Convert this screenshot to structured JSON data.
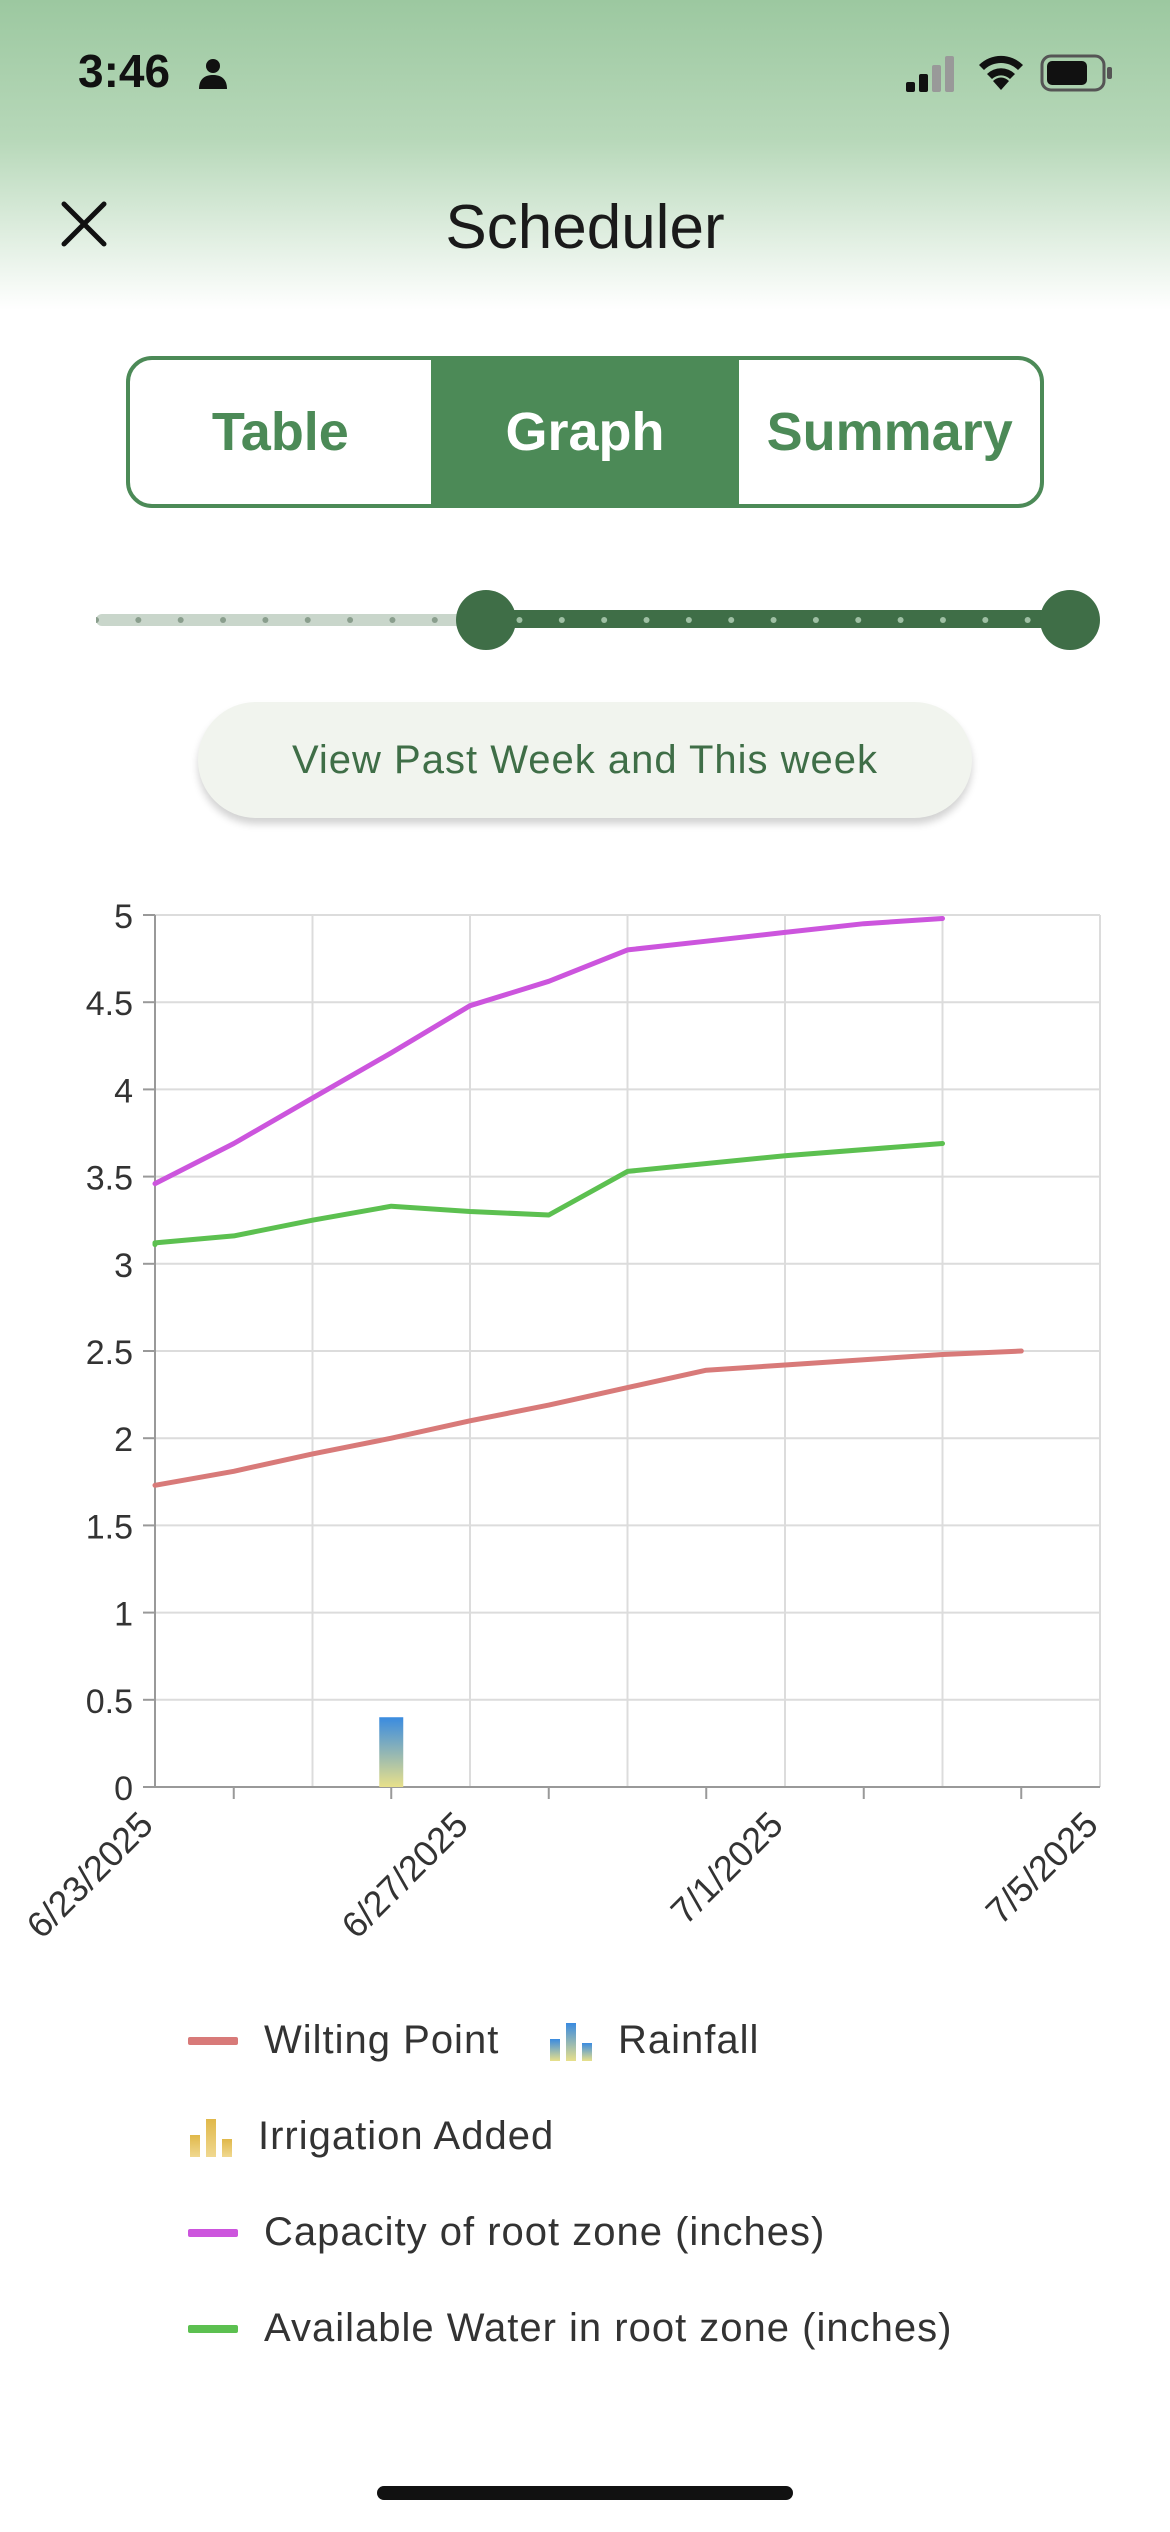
{
  "status_bar": {
    "time": "3:46"
  },
  "header": {
    "title": "Scheduler"
  },
  "tabs": [
    {
      "label": "Table",
      "active": false
    },
    {
      "label": "Graph",
      "active": true
    },
    {
      "label": "Summary",
      "active": false
    }
  ],
  "range_slider": {
    "lower_fraction": 0.4,
    "upper_fraction": 1.0
  },
  "view_button": {
    "label": "View Past Week and This week"
  },
  "colors": {
    "accent": "#4c8a57",
    "accent_dark": "#3f6e47",
    "wilting": "#d87a79",
    "capacity": "#cc55dd",
    "available": "#5cc050",
    "rain_top": "#3a8be0",
    "rain_bottom": "#e8e08a",
    "irrigation_a": "#e0b84a",
    "irrigation_b": "#f0d890"
  },
  "chart_data": {
    "type": "line",
    "x_labels": [
      "6/23/2025",
      "6/27/2025",
      "7/1/2025",
      "7/5/2025"
    ],
    "xlim": [
      "6/23/2025",
      "7/5/2025"
    ],
    "ylim": [
      0,
      5
    ],
    "y_ticks": [
      "0",
      "0.5",
      "1",
      "1.5",
      "2",
      "2.5",
      "3",
      "3.5",
      "4",
      "4.5",
      "5"
    ],
    "grid": true,
    "series": [
      {
        "name": "Wilting Point",
        "kind": "line",
        "color": "#d87a79",
        "points": [
          [
            "6/23/2025",
            1.73
          ],
          [
            "6/24/2025",
            1.81
          ],
          [
            "6/25/2025",
            1.91
          ],
          [
            "6/26/2025",
            2.0
          ],
          [
            "6/27/2025",
            2.1
          ],
          [
            "6/28/2025",
            2.19
          ],
          [
            "6/29/2025",
            2.29
          ],
          [
            "6/30/2025",
            2.39
          ],
          [
            "7/1/2025",
            2.42
          ],
          [
            "7/2/2025",
            2.45
          ],
          [
            "7/3/2025",
            2.48
          ],
          [
            "7/4/2025",
            2.5
          ]
        ]
      },
      {
        "name": "Capacity of root zone (inches)",
        "kind": "line",
        "color": "#cc55dd",
        "points": [
          [
            "6/23/2025",
            3.46
          ],
          [
            "6/24/2025",
            3.69
          ],
          [
            "6/25/2025",
            3.95
          ],
          [
            "6/26/2025",
            4.21
          ],
          [
            "6/27/2025",
            4.48
          ],
          [
            "6/28/2025",
            4.62
          ],
          [
            "6/29/2025",
            4.8
          ],
          [
            "6/30/2025",
            4.85
          ],
          [
            "7/1/2025",
            4.9
          ],
          [
            "7/2/2025",
            4.95
          ],
          [
            "7/3/2025",
            4.98
          ]
        ]
      },
      {
        "name": "Available Water in root zone (inches)",
        "kind": "line",
        "color": "#5cc050",
        "points": [
          [
            "6/23/2025",
            3.11
          ],
          [
            "6/23/2025",
            3.12
          ],
          [
            "6/24/2025",
            3.16
          ],
          [
            "6/25/2025",
            3.25
          ],
          [
            "6/26/2025",
            3.33
          ],
          [
            "6/27/2025",
            3.3
          ],
          [
            "6/28/2025",
            3.28
          ],
          [
            "6/29/2025",
            3.53
          ],
          [
            "7/1/2025",
            3.62
          ],
          [
            "7/3/2025",
            3.69
          ]
        ]
      },
      {
        "name": "Rainfall",
        "kind": "bar",
        "points": [
          [
            "6/26/2025",
            0.4
          ]
        ]
      },
      {
        "name": "Irrigation Added",
        "kind": "bar",
        "points": []
      }
    ]
  },
  "legend": [
    {
      "label": "Wilting Point",
      "symbol": "line",
      "color": "#d87a79"
    },
    {
      "label": "Rainfall",
      "symbol": "bars-rain"
    },
    {
      "label": "Irrigation Added",
      "symbol": "bars-irrigation"
    },
    {
      "label": "Capacity of root zone (inches)",
      "symbol": "line",
      "color": "#cc55dd"
    },
    {
      "label": "Available Water in root zone (inches)",
      "symbol": "line",
      "color": "#5cc050"
    }
  ]
}
